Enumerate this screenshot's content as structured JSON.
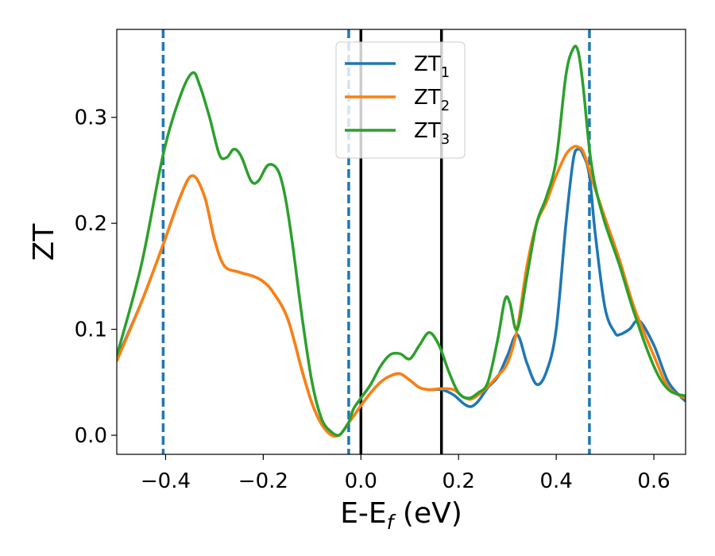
{
  "chart_data": {
    "type": "line",
    "xlabel": "E-E",
    "xlabel_sub": "f",
    "xlabel_unit": " (eV)",
    "ylabel": "ZT",
    "xlim": [
      -0.5,
      0.665
    ],
    "ylim": [
      -0.018,
      0.383
    ],
    "xticks": [
      -0.4,
      -0.2,
      0.0,
      0.2,
      0.4,
      0.6
    ],
    "xtick_labels": [
      "−0.4",
      "−0.2",
      "0.0",
      "0.2",
      "0.4",
      "0.6"
    ],
    "yticks": [
      0.0,
      0.1,
      0.2,
      0.3
    ],
    "ytick_labels": [
      "0.0",
      "0.1",
      "0.2",
      "0.3"
    ],
    "grid": false,
    "legend_position": "top-center",
    "vlines": [
      {
        "x": -0.405,
        "style": "dashed",
        "color": "#1f77b4"
      },
      {
        "x": -0.025,
        "style": "dashed",
        "color": "#1f77b4"
      },
      {
        "x": 0.0,
        "style": "solid",
        "color": "#000000"
      },
      {
        "x": 0.165,
        "style": "solid",
        "color": "#000000"
      },
      {
        "x": 0.468,
        "style": "dashed",
        "color": "#1f77b4"
      }
    ],
    "series": [
      {
        "name": "ZT",
        "sub": "1",
        "color": "#1f77b4",
        "x": [
          -0.5,
          -0.45,
          -0.405,
          -0.37,
          -0.345,
          -0.32,
          -0.3,
          -0.28,
          -0.25,
          -0.22,
          -0.2,
          -0.18,
          -0.15,
          -0.12,
          -0.1,
          -0.08,
          -0.06,
          -0.045,
          -0.035,
          -0.025,
          -0.015,
          0.0,
          0.02,
          0.04,
          0.06,
          0.08,
          0.1,
          0.12,
          0.14,
          0.165,
          0.19,
          0.21,
          0.225,
          0.24,
          0.26,
          0.28,
          0.3,
          0.32,
          0.34,
          0.36,
          0.38,
          0.4,
          0.42,
          0.435,
          0.445,
          0.455,
          0.468,
          0.48,
          0.5,
          0.52,
          0.53,
          0.55,
          0.57,
          0.6,
          0.63,
          0.665
        ],
        "y": [
          0.072,
          0.125,
          0.18,
          0.225,
          0.245,
          0.225,
          0.185,
          0.16,
          0.154,
          0.15,
          0.145,
          0.135,
          0.11,
          0.06,
          0.03,
          0.01,
          0.0,
          0.0,
          0.005,
          0.012,
          0.018,
          0.028,
          0.04,
          0.05,
          0.056,
          0.058,
          0.052,
          0.045,
          0.043,
          0.043,
          0.038,
          0.03,
          0.027,
          0.032,
          0.045,
          0.055,
          0.075,
          0.095,
          0.068,
          0.048,
          0.06,
          0.1,
          0.2,
          0.26,
          0.27,
          0.265,
          0.245,
          0.19,
          0.12,
          0.097,
          0.095,
          0.1,
          0.108,
          0.085,
          0.05,
          0.032
        ]
      },
      {
        "name": "ZT",
        "sub": "2",
        "color": "#ff7f0e",
        "x": [
          -0.5,
          -0.45,
          -0.405,
          -0.37,
          -0.345,
          -0.32,
          -0.3,
          -0.28,
          -0.25,
          -0.22,
          -0.2,
          -0.18,
          -0.15,
          -0.12,
          -0.1,
          -0.08,
          -0.06,
          -0.045,
          -0.035,
          -0.025,
          -0.015,
          0.0,
          0.02,
          0.04,
          0.06,
          0.08,
          0.1,
          0.12,
          0.14,
          0.165,
          0.19,
          0.21,
          0.225,
          0.24,
          0.26,
          0.28,
          0.3,
          0.32,
          0.34,
          0.36,
          0.38,
          0.4,
          0.42,
          0.435,
          0.445,
          0.455,
          0.468,
          0.48,
          0.5,
          0.53,
          0.56,
          0.6,
          0.63,
          0.665
        ],
        "y": [
          0.07,
          0.125,
          0.18,
          0.225,
          0.245,
          0.225,
          0.185,
          0.16,
          0.154,
          0.15,
          0.145,
          0.135,
          0.11,
          0.06,
          0.03,
          0.01,
          0.0,
          0.0,
          0.005,
          0.012,
          0.018,
          0.028,
          0.04,
          0.05,
          0.056,
          0.058,
          0.052,
          0.045,
          0.043,
          0.044,
          0.043,
          0.036,
          0.034,
          0.038,
          0.046,
          0.056,
          0.068,
          0.1,
          0.16,
          0.2,
          0.22,
          0.245,
          0.265,
          0.272,
          0.272,
          0.268,
          0.25,
          0.232,
          0.205,
          0.165,
          0.12,
          0.075,
          0.045,
          0.035
        ]
      },
      {
        "name": "ZT",
        "sub": "3",
        "color": "#2ca02c",
        "x": [
          -0.5,
          -0.45,
          -0.405,
          -0.37,
          -0.345,
          -0.33,
          -0.31,
          -0.29,
          -0.275,
          -0.26,
          -0.245,
          -0.225,
          -0.21,
          -0.19,
          -0.17,
          -0.155,
          -0.14,
          -0.12,
          -0.1,
          -0.08,
          -0.06,
          -0.045,
          -0.035,
          -0.025,
          -0.015,
          0.0,
          0.02,
          0.04,
          0.06,
          0.08,
          0.1,
          0.12,
          0.14,
          0.16,
          0.18,
          0.2,
          0.22,
          0.24,
          0.26,
          0.28,
          0.295,
          0.305,
          0.32,
          0.34,
          0.36,
          0.38,
          0.4,
          0.42,
          0.435,
          0.445,
          0.455,
          0.468,
          0.48,
          0.5,
          0.53,
          0.56,
          0.6,
          0.63,
          0.665
        ],
        "y": [
          0.075,
          0.16,
          0.265,
          0.32,
          0.342,
          0.33,
          0.3,
          0.265,
          0.262,
          0.27,
          0.263,
          0.24,
          0.24,
          0.255,
          0.25,
          0.225,
          0.18,
          0.11,
          0.05,
          0.015,
          0.003,
          0.0,
          0.005,
          0.012,
          0.025,
          0.035,
          0.048,
          0.065,
          0.076,
          0.077,
          0.072,
          0.085,
          0.097,
          0.085,
          0.06,
          0.04,
          0.035,
          0.04,
          0.05,
          0.09,
          0.128,
          0.125,
          0.1,
          0.15,
          0.2,
          0.225,
          0.26,
          0.34,
          0.365,
          0.362,
          0.33,
          0.27,
          0.235,
          0.2,
          0.16,
          0.115,
          0.065,
          0.043,
          0.037
        ]
      }
    ]
  }
}
